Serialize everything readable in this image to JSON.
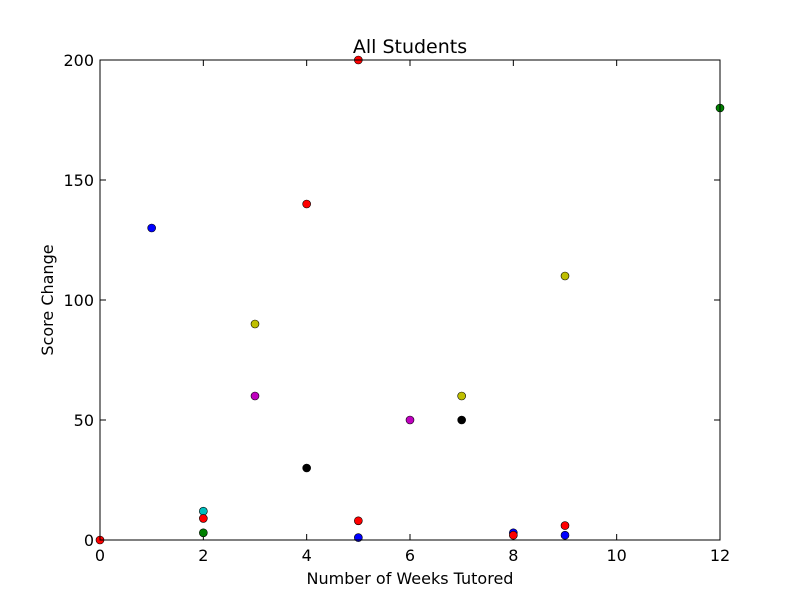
{
  "chart_data": {
    "type": "scatter",
    "title": "All Students",
    "xlabel": "Number of Weeks Tutored",
    "ylabel": "Score Change",
    "xlim": [
      0,
      12
    ],
    "ylim": [
      0,
      200
    ],
    "xticks": [
      0,
      2,
      4,
      6,
      8,
      10,
      12
    ],
    "yticks": [
      0,
      50,
      100,
      150,
      200
    ],
    "grid": false,
    "legend": "none",
    "points": [
      {
        "x": 0,
        "y": 0,
        "color": "#ff0000"
      },
      {
        "x": 1,
        "y": 130,
        "color": "#0000ff"
      },
      {
        "x": 2,
        "y": 12,
        "color": "#00bfbf"
      },
      {
        "x": 2,
        "y": 9,
        "color": "#ff0000"
      },
      {
        "x": 2,
        "y": 3,
        "color": "#008000"
      },
      {
        "x": 3,
        "y": 90,
        "color": "#bfbf00"
      },
      {
        "x": 3,
        "y": 60,
        "color": "#bf00bf"
      },
      {
        "x": 4,
        "y": 140,
        "color": "#ff0000"
      },
      {
        "x": 4,
        "y": 30,
        "color": "#000000"
      },
      {
        "x": 5,
        "y": 200,
        "color": "#ff0000"
      },
      {
        "x": 5,
        "y": 8,
        "color": "#ff0000"
      },
      {
        "x": 5,
        "y": 1,
        "color": "#0000ff"
      },
      {
        "x": 6,
        "y": 50,
        "color": "#bf00bf"
      },
      {
        "x": 7,
        "y": 60,
        "color": "#bfbf00"
      },
      {
        "x": 7,
        "y": 50,
        "color": "#000000"
      },
      {
        "x": 8,
        "y": 3,
        "color": "#0000ff"
      },
      {
        "x": 8,
        "y": 2,
        "color": "#ff0000"
      },
      {
        "x": 9,
        "y": 110,
        "color": "#bfbf00"
      },
      {
        "x": 9,
        "y": 6,
        "color": "#ff0000"
      },
      {
        "x": 9,
        "y": 2,
        "color": "#0000ff"
      },
      {
        "x": 12,
        "y": 180,
        "color": "#008000"
      }
    ]
  }
}
